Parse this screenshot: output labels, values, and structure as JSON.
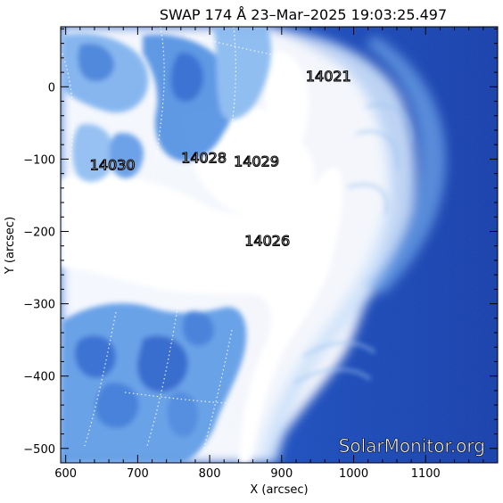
{
  "title": "SWAP 174 Å 23–Mar–2025 19:03:25.497",
  "x_axis": {
    "label": "X (arcsec)",
    "range": [
      593,
      1200
    ],
    "ticks": [
      "600",
      "700",
      "800",
      "900",
      "1000",
      "1100"
    ]
  },
  "y_axis": {
    "label": "Y (arcsec)",
    "range": [
      -520,
      83
    ],
    "ticks": [
      "0",
      "−100",
      "−200",
      "−300",
      "−400",
      "−500"
    ]
  },
  "active_regions": [
    {
      "number": "14021",
      "x": 965,
      "y": 8
    },
    {
      "number": "14030",
      "x": 665,
      "y": -115
    },
    {
      "number": "14028",
      "x": 792,
      "y": -105
    },
    {
      "number": "14029",
      "x": 865,
      "y": -110
    },
    {
      "number": "14026",
      "x": 880,
      "y": -220
    }
  ],
  "watermark": "SolarMonitor.org",
  "colors": {
    "background": "#ffffff",
    "disk_bright": "#ffffff",
    "disk_mid": "#5f9be6",
    "coronal_dark": "#1556c8",
    "space": "#1a40b0"
  }
}
